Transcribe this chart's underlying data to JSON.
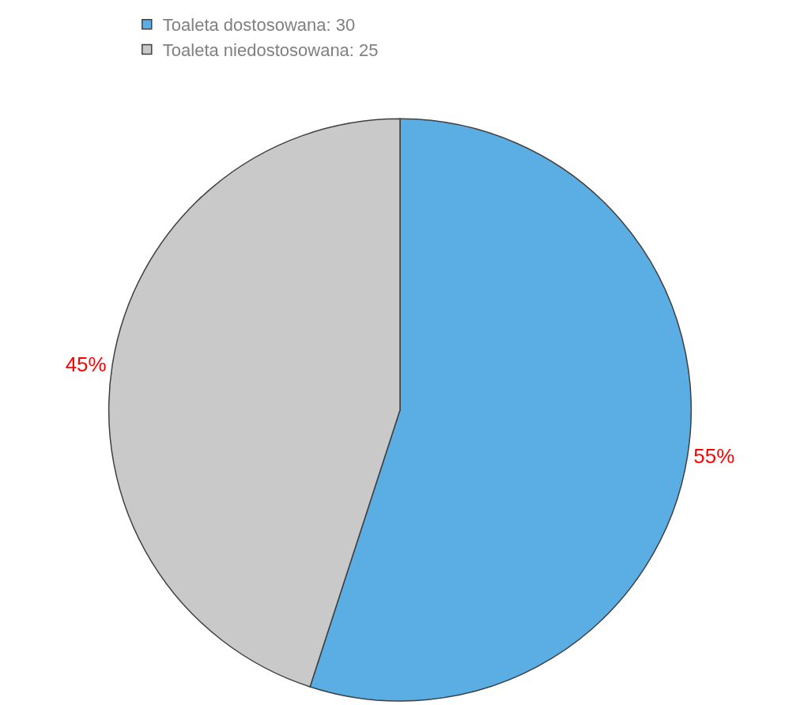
{
  "chart_data": {
    "type": "pie",
    "categories": [
      "Toaleta dostosowana: 30",
      "Toaleta niedostosowana: 25"
    ],
    "values": [
      55,
      45
    ],
    "value_labels": [
      "55%",
      "45%"
    ],
    "colors": [
      "#5aaee3",
      "#c9c9c9"
    ],
    "legend": "top"
  }
}
